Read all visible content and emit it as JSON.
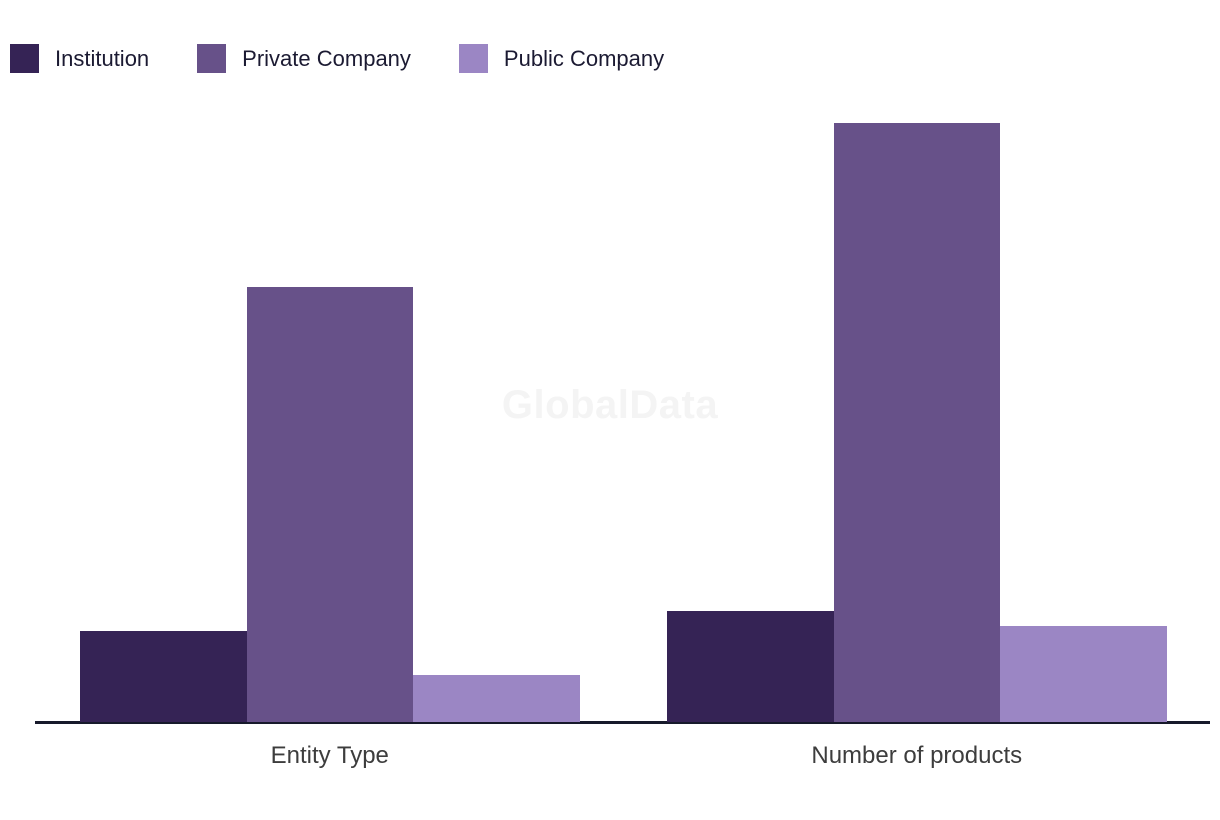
{
  "watermark": {
    "text": "GlobalData"
  },
  "legend": {
    "items": [
      {
        "label": "Institution",
        "color": "#352355"
      },
      {
        "label": "Private Company",
        "color": "#675189"
      },
      {
        "label": "Public Company",
        "color": "#9B86C4"
      }
    ]
  },
  "chart_data": {
    "type": "bar",
    "categories": [
      "Entity Type",
      "Number of products"
    ],
    "series": [
      {
        "name": "Institution",
        "color": "#352355",
        "values": [
          91,
          111
        ]
      },
      {
        "name": "Private Company",
        "color": "#675189",
        "values": [
          435,
          599
        ]
      },
      {
        "name": "Public Company",
        "color": "#9B86C4",
        "values": [
          47,
          96
        ]
      }
    ],
    "title": "",
    "xlabel": "",
    "ylabel": "",
    "value_units": "relative height units (chart shows no y-axis, gridlines, or data labels; values are proportional bar heights)",
    "ylim": [
      0,
      620
    ],
    "grid": false,
    "legend_position": "top-left",
    "axis_line_color": "#171A2B",
    "category_label_color": "#3D3D3D",
    "watermark_text": "GlobalData",
    "background": "#FFFFFF"
  }
}
